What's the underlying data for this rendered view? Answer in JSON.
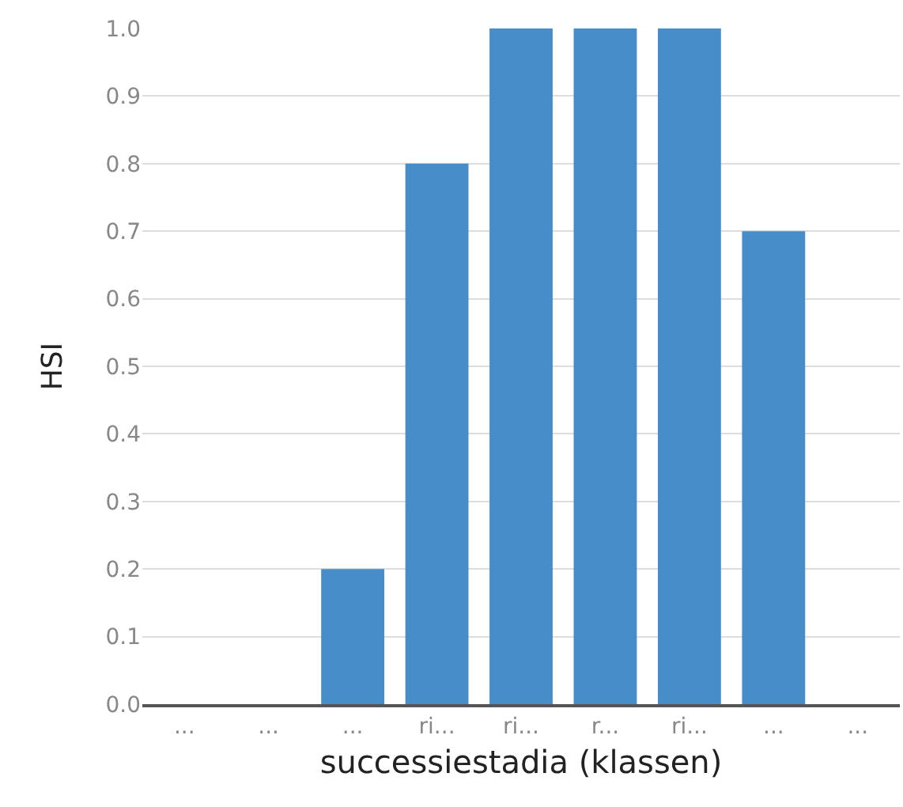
{
  "chart_data": {
    "type": "bar",
    "xlabel": "successiestadia (klassen)",
    "ylabel": "HSI",
    "categories": [
      "...",
      "...",
      "...",
      "ri...",
      "ri...",
      "r...",
      "ri...",
      "...",
      "..."
    ],
    "values": [
      0,
      0,
      0.2,
      0.8,
      1,
      1,
      1,
      0.7,
      0
    ],
    "color": "#478dc9",
    "ylim": [
      0,
      1
    ],
    "yticks": [
      {
        "value": 0,
        "label": "0.0"
      },
      {
        "value": 0.1,
        "label": "0.1"
      },
      {
        "value": 0.2,
        "label": "0.2"
      },
      {
        "value": 0.3,
        "label": "0.3"
      },
      {
        "value": 0.4,
        "label": "0.4"
      },
      {
        "value": 0.5,
        "label": "0.5"
      },
      {
        "value": 0.6,
        "label": "0.6"
      },
      {
        "value": 0.7,
        "label": "0.7"
      },
      {
        "value": 0.8,
        "label": "0.8"
      },
      {
        "value": 0.9,
        "label": "0.9"
      },
      {
        "value": 1,
        "label": "1.0"
      }
    ],
    "grid": "y"
  }
}
